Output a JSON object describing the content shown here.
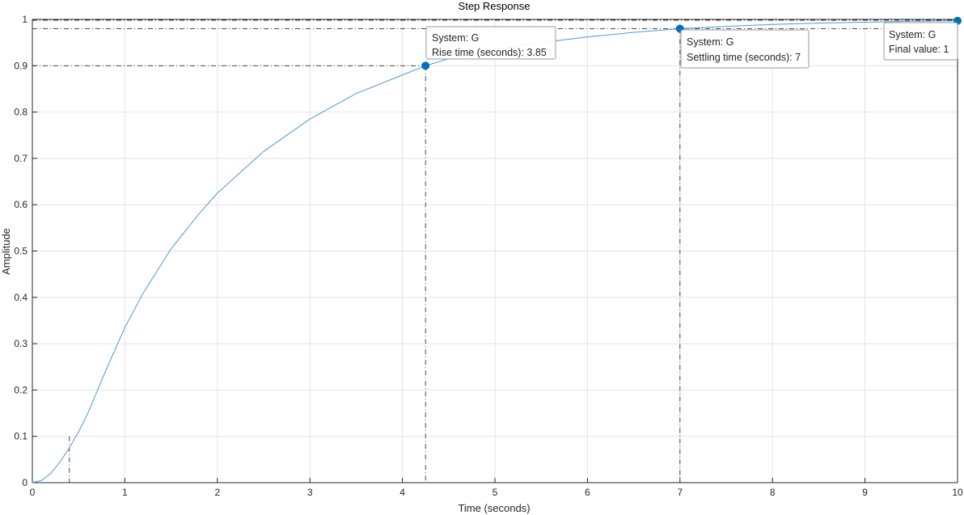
{
  "chart_data": {
    "type": "line",
    "title": "Step Response",
    "xlabel": "Time (seconds)",
    "ylabel": "Amplitude",
    "xlim": [
      0,
      10
    ],
    "ylim": [
      0,
      1
    ],
    "xticks": [
      "0",
      "1",
      "2",
      "3",
      "4",
      "5",
      "6",
      "7",
      "8",
      "9",
      "10"
    ],
    "yticks": [
      "0",
      "0.1",
      "0.2",
      "0.3",
      "0.4",
      "0.5",
      "0.6",
      "0.7",
      "0.8",
      "0.9",
      "1"
    ],
    "grid": true,
    "series": [
      {
        "color": "#4a9ad4",
        "x": [
          0,
          0.1,
          0.2,
          0.3,
          0.4,
          0.5,
          0.6,
          0.8,
          1.0,
          1.2,
          1.5,
          1.8,
          2.0,
          2.5,
          3.0,
          3.5,
          4.0,
          4.25,
          4.5,
          5.0,
          5.5,
          6.0,
          6.5,
          7.0,
          7.5,
          8.0,
          8.5,
          9.0,
          9.5,
          10.0
        ],
        "y": [
          0,
          0.005,
          0.02,
          0.045,
          0.075,
          0.11,
          0.15,
          0.245,
          0.335,
          0.41,
          0.505,
          0.58,
          0.625,
          0.715,
          0.785,
          0.84,
          0.88,
          0.9,
          0.915,
          0.935,
          0.95,
          0.962,
          0.972,
          0.98,
          0.985,
          0.989,
          0.992,
          0.994,
          0.996,
          0.997
        ]
      }
    ],
    "reference_lines": {
      "rise_low": {
        "x": 0.4,
        "y": 0.1
      },
      "rise_high": {
        "x": 4.25,
        "y": 0.9
      },
      "settling": {
        "x": 7.0,
        "y": 0.98
      },
      "final": {
        "y": 1.0
      }
    },
    "markers": [
      {
        "x": 4.25,
        "y": 0.9
      },
      {
        "x": 7.0,
        "y": 0.98
      },
      {
        "x": 10.0,
        "y": 0.997
      }
    ],
    "datatips": [
      {
        "line1": "System: G",
        "line2": "Rise time (seconds): 3.85"
      },
      {
        "line1": "System: G",
        "line2": "Settling time (seconds): 7"
      },
      {
        "line1": "System: G",
        "line2": "Final value: 1"
      }
    ],
    "accent_color": "#0072bd"
  }
}
